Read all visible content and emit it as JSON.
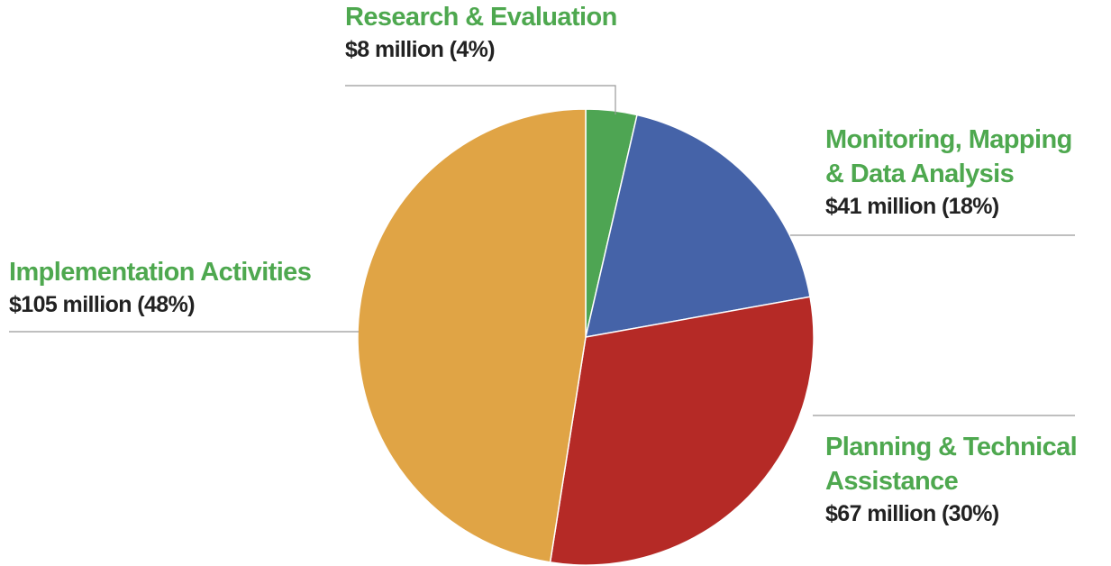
{
  "chart_data": {
    "type": "pie",
    "categories": [
      "Research & Evaluation",
      "Monitoring, Mapping & Data Analysis",
      "Planning & Technical Assistance",
      "Implementation Activities"
    ],
    "values": [
      8,
      41,
      67,
      105
    ],
    "value_labels": [
      "$8 million (4%)",
      "$41 million (18%)",
      "$67 million (30%)",
      "$105 million (48%)"
    ],
    "colors": [
      "#4ea553",
      "#4563a8",
      "#b52a26",
      "#e0a445"
    ]
  }
}
